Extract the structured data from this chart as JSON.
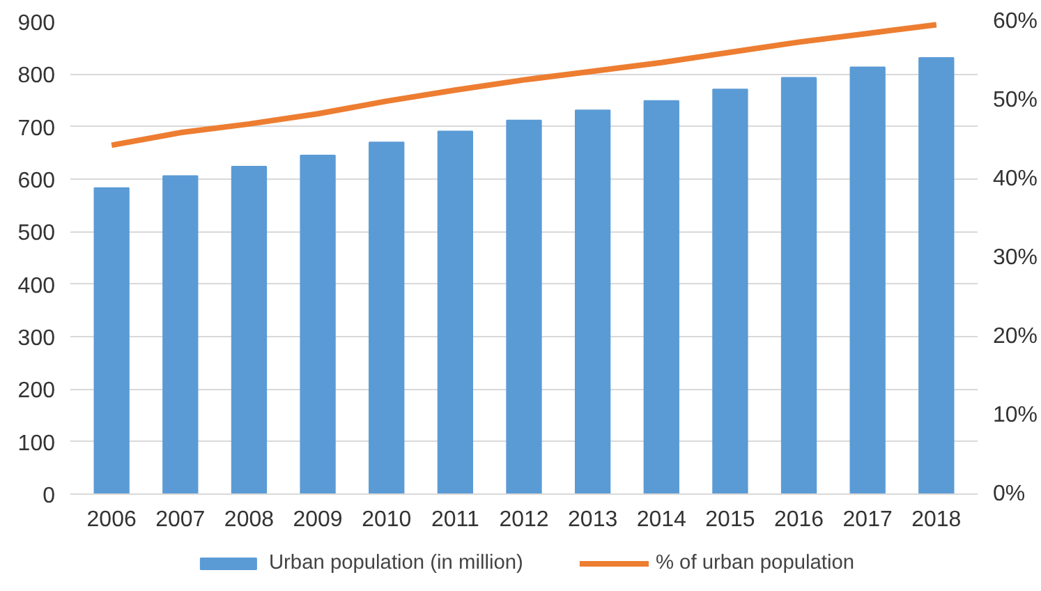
{
  "chart_data": {
    "type": "bar",
    "categories": [
      "2006",
      "2007",
      "2008",
      "2009",
      "2010",
      "2011",
      "2012",
      "2013",
      "2014",
      "2015",
      "2016",
      "2017",
      "2018"
    ],
    "series": [
      {
        "name": "Urban population (in million)",
        "color": "#5b9bd5",
        "values": [
          583,
          606,
          624,
          645,
          670,
          691,
          712,
          731,
          749,
          771,
          793,
          813,
          831
        ]
      },
      {
        "name": "% of urban population",
        "type": "line",
        "axis": "y2",
        "color": "#ed7d31",
        "values": [
          44.3,
          45.9,
          47.0,
          48.3,
          49.9,
          51.3,
          52.6,
          53.7,
          54.8,
          56.1,
          57.4,
          58.5,
          59.6
        ]
      }
    ],
    "ylim": [
      0,
      900
    ],
    "yticks": [
      0,
      100,
      200,
      300,
      400,
      500,
      600,
      700,
      800,
      900
    ],
    "y2lim": [
      0,
      60
    ],
    "y2ticks": [
      {
        "value": 0,
        "label": "0%"
      },
      {
        "value": 10,
        "label": "10%"
      },
      {
        "value": 20,
        "label": "20%"
      },
      {
        "value": 30,
        "label": "30%"
      },
      {
        "value": 40,
        "label": "40%"
      },
      {
        "value": 50,
        "label": "50%"
      },
      {
        "value": 60,
        "label": "60%"
      }
    ],
    "grid": "y",
    "legend": "bottom"
  }
}
